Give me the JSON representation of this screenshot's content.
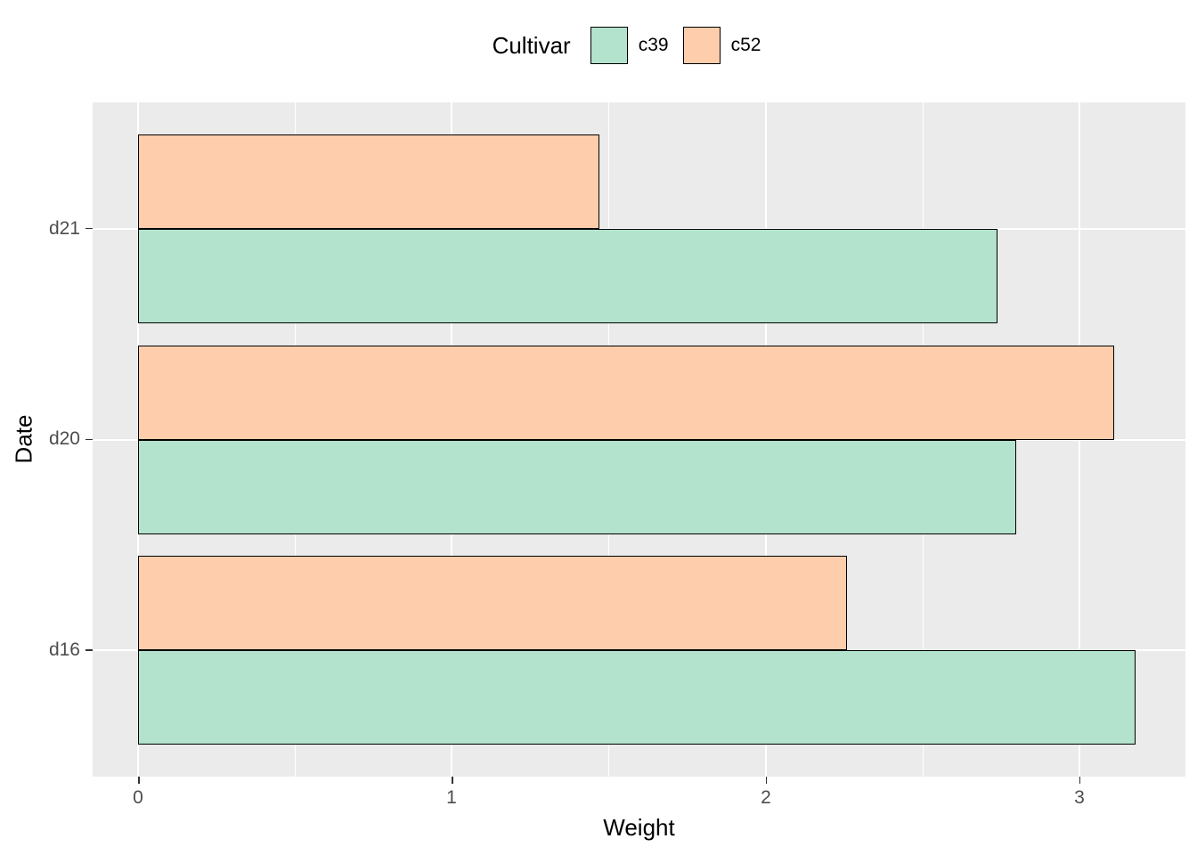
{
  "legend": {
    "title": "Cultivar",
    "items": [
      {
        "label": "c39",
        "color": "#B3E2CD"
      },
      {
        "label": "c52",
        "color": "#FDCDAC"
      }
    ]
  },
  "chart_data": {
    "type": "bar",
    "orientation": "horizontal",
    "title": "",
    "xlabel": "Weight",
    "ylabel": "Date",
    "categories": [
      "d16",
      "d20",
      "d21"
    ],
    "series": [
      {
        "name": "c39",
        "color": "#B3E2CD",
        "values": [
          3.18,
          2.8,
          2.74
        ]
      },
      {
        "name": "c52",
        "color": "#FDCDAC",
        "values": [
          2.26,
          3.11,
          1.47
        ]
      }
    ],
    "group_order_top_to_bottom": [
      "d21",
      "d20",
      "d16"
    ],
    "series_order_within_group_top_to_bottom": [
      "c52",
      "c39"
    ],
    "x_ticks": [
      0,
      1,
      2,
      3
    ],
    "x_minor_ticks": [
      0.5,
      1.5,
      2.5
    ],
    "xlim": [
      0,
      3.35
    ],
    "grid": "on",
    "legend_position": "top-center",
    "panel_background": "#EBEBEB",
    "grid_color": "#FFFFFF",
    "bar_border_color": "#000000",
    "tick_label_color": "#4D4D4D"
  },
  "axes": {
    "x_tick_labels": [
      "0",
      "1",
      "2",
      "3"
    ],
    "y_tick_labels": [
      "d21",
      "d20",
      "d16"
    ]
  }
}
